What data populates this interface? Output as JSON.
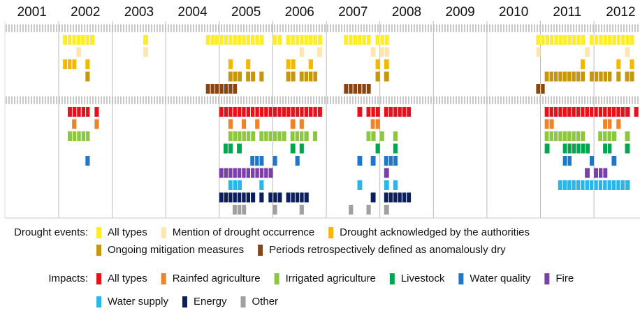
{
  "chart_data": {
    "type": "timeline",
    "xlim": [
      2001,
      2012.86
    ],
    "xticks": [
      2001,
      2002,
      2003,
      2004,
      2005,
      2006,
      2007,
      2008,
      2009,
      2010,
      2011,
      2012
    ],
    "groups": [
      {
        "name": "Drought events:",
        "series": [
          {
            "name": "All types",
            "color": "#ffed29",
            "periods": [
              [
                2002.08,
                2002.67
              ],
              [
                2003.58,
                2003.67
              ],
              [
                2004.75,
                2005.83
              ],
              [
                2006.0,
                2006.17
              ],
              [
                2006.25,
                2006.92
              ],
              [
                2007.33,
                2007.83
              ],
              [
                2007.92,
                2008.17
              ],
              [
                2010.92,
                2011.83
              ],
              [
                2011.92,
                2012.75
              ]
            ]
          },
          {
            "name": "Mention of drought occurrence",
            "color": "#fde6b0",
            "periods": [
              [
                2002.33,
                2002.42
              ],
              [
                2003.58,
                2003.67
              ],
              [
                2006.5,
                2006.58
              ],
              [
                2006.83,
                2006.92
              ],
              [
                2007.83,
                2007.92
              ],
              [
                2008.0,
                2008.17
              ],
              [
                2010.92,
                2011.0
              ],
              [
                2011.83,
                2011.92
              ],
              [
                2012.58,
                2012.67
              ]
            ]
          },
          {
            "name": "Drought acknowledged by the authorities",
            "color": "#f5b800",
            "periods": [
              [
                2002.08,
                2002.33
              ],
              [
                2002.5,
                2002.58
              ],
              [
                2005.17,
                2005.25
              ],
              [
                2005.5,
                2005.58
              ],
              [
                2006.25,
                2006.42
              ],
              [
                2006.67,
                2006.75
              ],
              [
                2007.92,
                2008.0
              ],
              [
                2008.08,
                2008.17
              ],
              [
                2011.75,
                2011.83
              ],
              [
                2012.42,
                2012.5
              ],
              [
                2012.67,
                2012.75
              ]
            ]
          },
          {
            "name": "Ongoing mitigation measures",
            "color": "#c7960c",
            "periods": [
              [
                2002.5,
                2002.58
              ],
              [
                2005.17,
                2005.42
              ],
              [
                2005.5,
                2005.67
              ],
              [
                2005.75,
                2005.83
              ],
              [
                2006.25,
                2006.42
              ],
              [
                2006.5,
                2006.83
              ],
              [
                2007.92,
                2008.0
              ],
              [
                2008.08,
                2008.17
              ],
              [
                2011.08,
                2011.83
              ],
              [
                2011.92,
                2012.33
              ],
              [
                2012.42,
                2012.5
              ],
              [
                2012.58,
                2012.75
              ]
            ]
          },
          {
            "name": "Periods retrospectively defined as anomalously dry",
            "color": "#8b4513",
            "periods": [
              [
                2004.75,
                2005.33
              ],
              [
                2007.33,
                2007.83
              ],
              [
                2010.92,
                2011.08
              ]
            ]
          }
        ]
      },
      {
        "name": "Impacts:",
        "series": [
          {
            "name": "All types",
            "color": "#e8101a",
            "periods": [
              [
                2002.17,
                2002.58
              ],
              [
                2002.67,
                2002.75
              ],
              [
                2005.0,
                2006.92
              ],
              [
                2007.58,
                2007.67
              ],
              [
                2007.75,
                2008.0
              ],
              [
                2008.08,
                2008.58
              ],
              [
                2011.08,
                2012.67
              ],
              [
                2012.75,
                2012.83
              ]
            ]
          },
          {
            "name": "Rainfed agriculture",
            "color": "#f08228",
            "periods": [
              [
                2002.25,
                2002.33
              ],
              [
                2002.67,
                2002.75
              ],
              [
                2005.17,
                2005.25
              ],
              [
                2005.42,
                2005.5
              ],
              [
                2005.67,
                2005.75
              ],
              [
                2006.33,
                2006.42
              ],
              [
                2006.5,
                2006.58
              ],
              [
                2007.83,
                2008.0
              ],
              [
                2011.08,
                2011.25
              ],
              [
                2012.17,
                2012.33
              ],
              [
                2012.42,
                2012.5
              ]
            ]
          },
          {
            "name": "Irrigated agriculture",
            "color": "#8dc63f",
            "periods": [
              [
                2002.17,
                2002.58
              ],
              [
                2005.17,
                2005.67
              ],
              [
                2005.75,
                2006.25
              ],
              [
                2006.33,
                2006.67
              ],
              [
                2006.75,
                2006.83
              ],
              [
                2007.75,
                2007.92
              ],
              [
                2008.0,
                2008.08
              ],
              [
                2008.25,
                2008.33
              ],
              [
                2011.08,
                2011.83
              ],
              [
                2012.08,
                2012.42
              ],
              [
                2012.58,
                2012.67
              ]
            ]
          },
          {
            "name": "Livestock",
            "color": "#00a651",
            "periods": [
              [
                2005.08,
                2005.25
              ],
              [
                2005.33,
                2005.42
              ],
              [
                2006.33,
                2006.42
              ],
              [
                2006.5,
                2006.58
              ],
              [
                2007.92,
                2008.0
              ],
              [
                2008.25,
                2008.33
              ],
              [
                2011.08,
                2011.17
              ],
              [
                2011.42,
                2011.92
              ],
              [
                2012.17,
                2012.33
              ],
              [
                2012.58,
                2012.67
              ]
            ]
          },
          {
            "name": "Water quality",
            "color": "#1f77c8",
            "periods": [
              [
                2002.5,
                2002.58
              ],
              [
                2005.58,
                2005.83
              ],
              [
                2006.0,
                2006.08
              ],
              [
                2006.42,
                2006.5
              ],
              [
                2007.58,
                2007.67
              ],
              [
                2007.83,
                2007.92
              ],
              [
                2008.08,
                2008.33
              ],
              [
                2011.42,
                2011.58
              ],
              [
                2011.92,
                2012.0
              ],
              [
                2012.33,
                2012.42
              ]
            ]
          },
          {
            "name": "Fire",
            "color": "#7b3fa8",
            "periods": [
              [
                2005.0,
                2006.0
              ],
              [
                2008.08,
                2008.17
              ],
              [
                2011.83,
                2011.92
              ],
              [
                2012.0,
                2012.25
              ]
            ]
          },
          {
            "name": "Water supply",
            "color": "#29b6e8",
            "periods": [
              [
                2005.17,
                2005.42
              ],
              [
                2005.75,
                2005.83
              ],
              [
                2007.58,
                2007.67
              ],
              [
                2008.08,
                2008.17
              ],
              [
                2008.25,
                2008.33
              ],
              [
                2011.33,
                2012.67
              ]
            ]
          },
          {
            "name": "Energy",
            "color": "#0b1f5c",
            "periods": [
              [
                2005.0,
                2005.67
              ],
              [
                2005.75,
                2005.83
              ],
              [
                2005.92,
                2006.17
              ],
              [
                2006.25,
                2006.67
              ],
              [
                2007.83,
                2007.92
              ],
              [
                2008.08,
                2008.58
              ]
            ]
          },
          {
            "name": "Other",
            "color": "#a0a0a0",
            "periods": [
              [
                2005.25,
                2005.5
              ],
              [
                2006.0,
                2006.08
              ],
              [
                2006.5,
                2006.58
              ],
              [
                2007.42,
                2007.5
              ],
              [
                2007.75,
                2007.83
              ],
              [
                2008.08,
                2008.17
              ]
            ]
          }
        ]
      }
    ]
  }
}
